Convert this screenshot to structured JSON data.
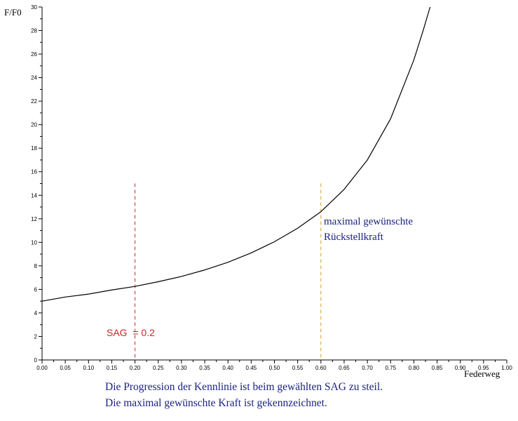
{
  "chart_data": {
    "type": "line",
    "ylabel": "F/F0",
    "xlabel": "Federweg",
    "xlim": [
      0,
      1
    ],
    "ylim": [
      0,
      30
    ],
    "x_ticks": [
      "0.00",
      "0.05",
      "0.10",
      "0.15",
      "0.20",
      "0.25",
      "0.30",
      "0.35",
      "0.40",
      "0.45",
      "0.50",
      "0.55",
      "0.60",
      "0.65",
      "0.70",
      "0.75",
      "0.80",
      "0.85",
      "0.90",
      "0.95",
      "1.00"
    ],
    "y_ticks": [
      "0",
      "2",
      "4",
      "6",
      "8",
      "10",
      "12",
      "14",
      "16",
      "18",
      "20",
      "22",
      "24",
      "26",
      "28",
      "30"
    ],
    "grid": false,
    "series": [
      {
        "color": "#000000",
        "x": [
          0.0,
          0.05,
          0.1,
          0.15,
          0.2,
          0.25,
          0.3,
          0.35,
          0.4,
          0.45,
          0.5,
          0.55,
          0.6,
          0.65,
          0.7,
          0.75,
          0.8,
          0.82,
          0.835
        ],
        "y": [
          5.0,
          5.35,
          5.6,
          5.95,
          6.25,
          6.65,
          7.1,
          7.65,
          8.3,
          9.1,
          10.05,
          11.2,
          12.6,
          14.5,
          17.0,
          20.5,
          25.5,
          28.0,
          30.0
        ]
      }
    ],
    "markers": [
      {
        "x": 0.2,
        "y_top": 15,
        "color": "#c62828",
        "label": "SAG  = 0.2"
      },
      {
        "x": 0.6,
        "y_top": 15,
        "color": "#d4a017",
        "label_lines": [
          "maximal gewünschte",
          "Rückstellkraft"
        ]
      }
    ]
  },
  "caption": {
    "line1": "Die Progression der Kennlinie ist beim gewählten SAG zu steil.",
    "line2": "Die maximal gewünschte Kraft ist gekennzeichnet."
  }
}
